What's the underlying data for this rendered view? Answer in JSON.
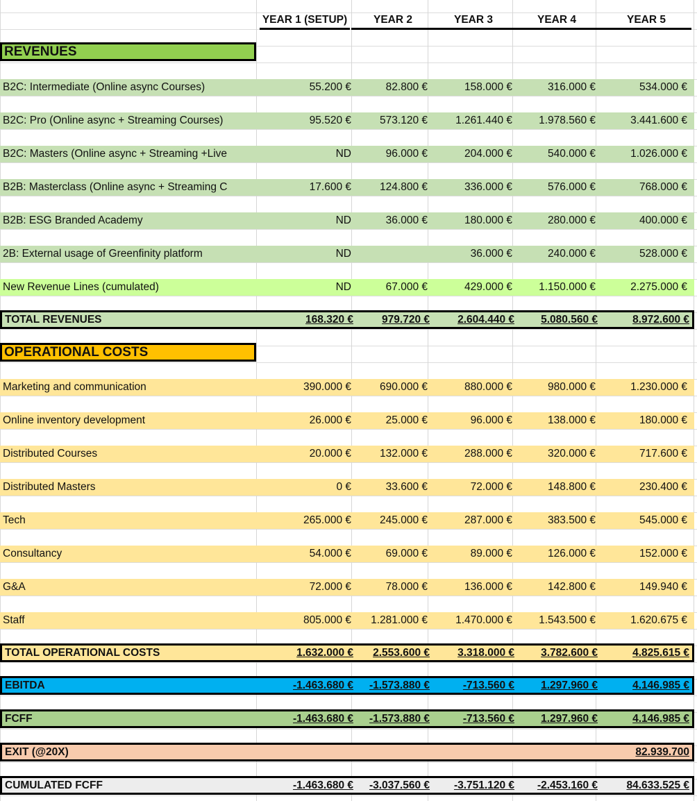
{
  "headers": [
    "YEAR 1 (SETUP)",
    "YEAR 2",
    "YEAR 3",
    "YEAR 4",
    "YEAR 5"
  ],
  "sections": {
    "revenues": "REVENUES",
    "costs": "OPERATIONAL COSTS"
  },
  "revenue_rows": [
    {
      "label": "B2C: Intermediate (Online async Courses)",
      "v": [
        "55.200 €",
        "82.800 €",
        "158.000 €",
        "316.000 €",
        "534.000 €"
      ]
    },
    {
      "label": "B2C: Pro (Online async + Streaming Courses)",
      "v": [
        "95.520 €",
        "573.120 €",
        "1.261.440 €",
        "1.978.560 €",
        "3.441.600 €"
      ]
    },
    {
      "label": "B2C: Masters (Online async + Streaming +Live",
      "v": [
        "ND",
        "96.000 €",
        "204.000 €",
        "540.000 €",
        "1.026.000 €"
      ]
    },
    {
      "label": "B2B: Masterclass (Online async + Streaming C",
      "v": [
        "17.600 €",
        "124.800 €",
        "336.000 €",
        "576.000 €",
        "768.000 €"
      ]
    },
    {
      "label": "B2B: ESG Branded Academy",
      "v": [
        "ND",
        "36.000 €",
        "180.000 €",
        "280.000 €",
        "400.000 €"
      ]
    },
    {
      "label": "2B: External usage of Greenfinity platform",
      "v": [
        "ND",
        "",
        "36.000 €",
        "240.000 €",
        "528.000 €"
      ]
    },
    {
      "label": "New Revenue Lines (cumulated)",
      "v": [
        "ND",
        "67.000 €",
        "429.000 €",
        "1.150.000 €",
        "2.275.000 €"
      ]
    }
  ],
  "total_revenues": {
    "label": "TOTAL REVENUES",
    "v": [
      "168.320 €",
      "979.720 €",
      "2.604.440 €",
      "5.080.560 €",
      "8.972.600 €"
    ]
  },
  "cost_rows": [
    {
      "label": "Marketing and communication",
      "v": [
        "390.000 €",
        "690.000 €",
        "880.000 €",
        "980.000 €",
        "1.230.000 €"
      ]
    },
    {
      "label": "Online inventory development",
      "v": [
        "26.000 €",
        "25.000 €",
        "96.000 €",
        "138.000 €",
        "180.000 €"
      ]
    },
    {
      "label": "Distributed Courses",
      "v": [
        "20.000 €",
        "132.000 €",
        "288.000 €",
        "320.000 €",
        "717.600 €"
      ]
    },
    {
      "label": "Distributed Masters",
      "v": [
        "0 €",
        "33.600 €",
        "72.000 €",
        "148.800 €",
        "230.400 €"
      ]
    },
    {
      "label": "Tech",
      "v": [
        "265.000 €",
        "245.000 €",
        "287.000 €",
        "383.500 €",
        "545.000 €"
      ]
    },
    {
      "label": "Consultancy",
      "v": [
        "54.000 €",
        "69.000 €",
        "89.000 €",
        "126.000 €",
        "152.000 €"
      ]
    },
    {
      "label": "G&A",
      "v": [
        "72.000 €",
        "78.000 €",
        "136.000 €",
        "142.800 €",
        "149.940 €"
      ]
    },
    {
      "label": "Staff",
      "v": [
        "805.000 €",
        "1.281.000 €",
        "1.470.000 €",
        "1.543.500 €",
        "1.620.675 €"
      ]
    }
  ],
  "total_costs": {
    "label": "TOTAL OPERATIONAL COSTS",
    "v": [
      "1.632.000 €",
      "2.553.600 €",
      "3.318.000 €",
      "3.782.600 €",
      "4.825.615 €"
    ]
  },
  "ebitda": {
    "label": "EBITDA",
    "v": [
      "-1.463.680 €",
      "-1.573.880 €",
      "-713.560 €",
      "1.297.960 €",
      "4.146.985 €"
    ]
  },
  "fcff": {
    "label": "FCFF",
    "v": [
      "-1.463.680 €",
      "-1.573.880 €",
      "-713.560 €",
      "1.297.960 €",
      "4.146.985 €"
    ]
  },
  "exit": {
    "label": "EXIT (@20X)",
    "v": [
      "",
      "",
      "",
      "",
      "82.939.700"
    ]
  },
  "cumulated": {
    "label": "CUMULATED FCFF",
    "v": [
      "-1.463.680 €",
      "-3.037.560 €",
      "-3.751.120 €",
      "-2.453.160 €",
      "84.633.525 €"
    ]
  },
  "colors": {
    "revenue_row": "#c6e0b4",
    "revenue_new": "#ccff99",
    "revenues_header": "#92d050",
    "cost_row": "#ffe699",
    "costs_header": "#ffc000",
    "ebitda": "#00b0f0",
    "fcff": "#a9d08e",
    "exit": "#f8cbad",
    "cumulated": "#ededed"
  }
}
